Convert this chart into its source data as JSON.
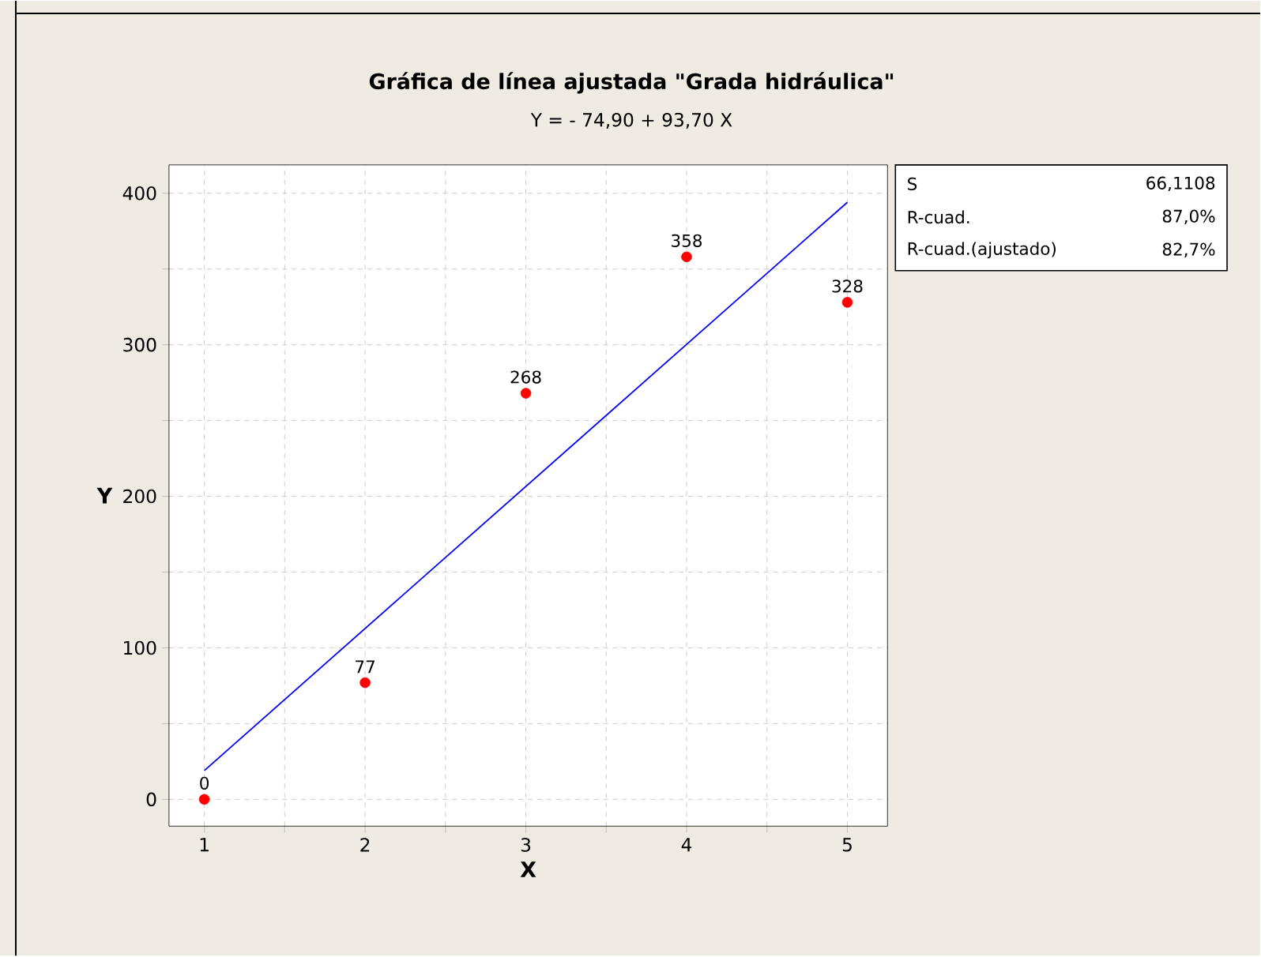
{
  "chart_data": {
    "type": "scatter",
    "title": "Gráfica de línea ajustada \"Grada hidráulica\"",
    "subtitle": "Y =  - 74,90 + 93,70 X",
    "xlabel": "X",
    "ylabel": "Y",
    "xlim": [
      0.78,
      5.25
    ],
    "ylim": [
      -17.7,
      418.7
    ],
    "xticks": [
      1,
      {
        "value": 1.5,
        "label": null
      },
      2,
      {
        "value": 2.5,
        "label": null
      },
      3,
      {
        "value": 3.5,
        "label": null
      },
      4,
      {
        "value": 4.5,
        "label": null
      },
      5
    ],
    "yticks": [
      0,
      {
        "value": 50,
        "label": null
      },
      100,
      {
        "value": 150,
        "label": null
      },
      200,
      {
        "value": 250,
        "label": null
      },
      300,
      {
        "value": 350,
        "label": null
      },
      400
    ],
    "grid": true,
    "series": [
      {
        "color": "#ff0000",
        "marker": "circle",
        "x": [
          1,
          2,
          3,
          4,
          5
        ],
        "values": [
          0,
          77,
          268,
          358,
          328
        ],
        "value_labels": [
          "0",
          "77",
          "268",
          "358",
          "328"
        ]
      },
      {
        "type": "line",
        "color": "#0000ff",
        "marker": "none",
        "line_style": "solid",
        "x": [
          1,
          5
        ],
        "values": [
          19,
          394
        ]
      }
    ],
    "annotations": [
      "S",
      "66,1108",
      "R-cuad.",
      "87,0%",
      "R-cuad.(ajustado)",
      "82,7%"
    ]
  }
}
